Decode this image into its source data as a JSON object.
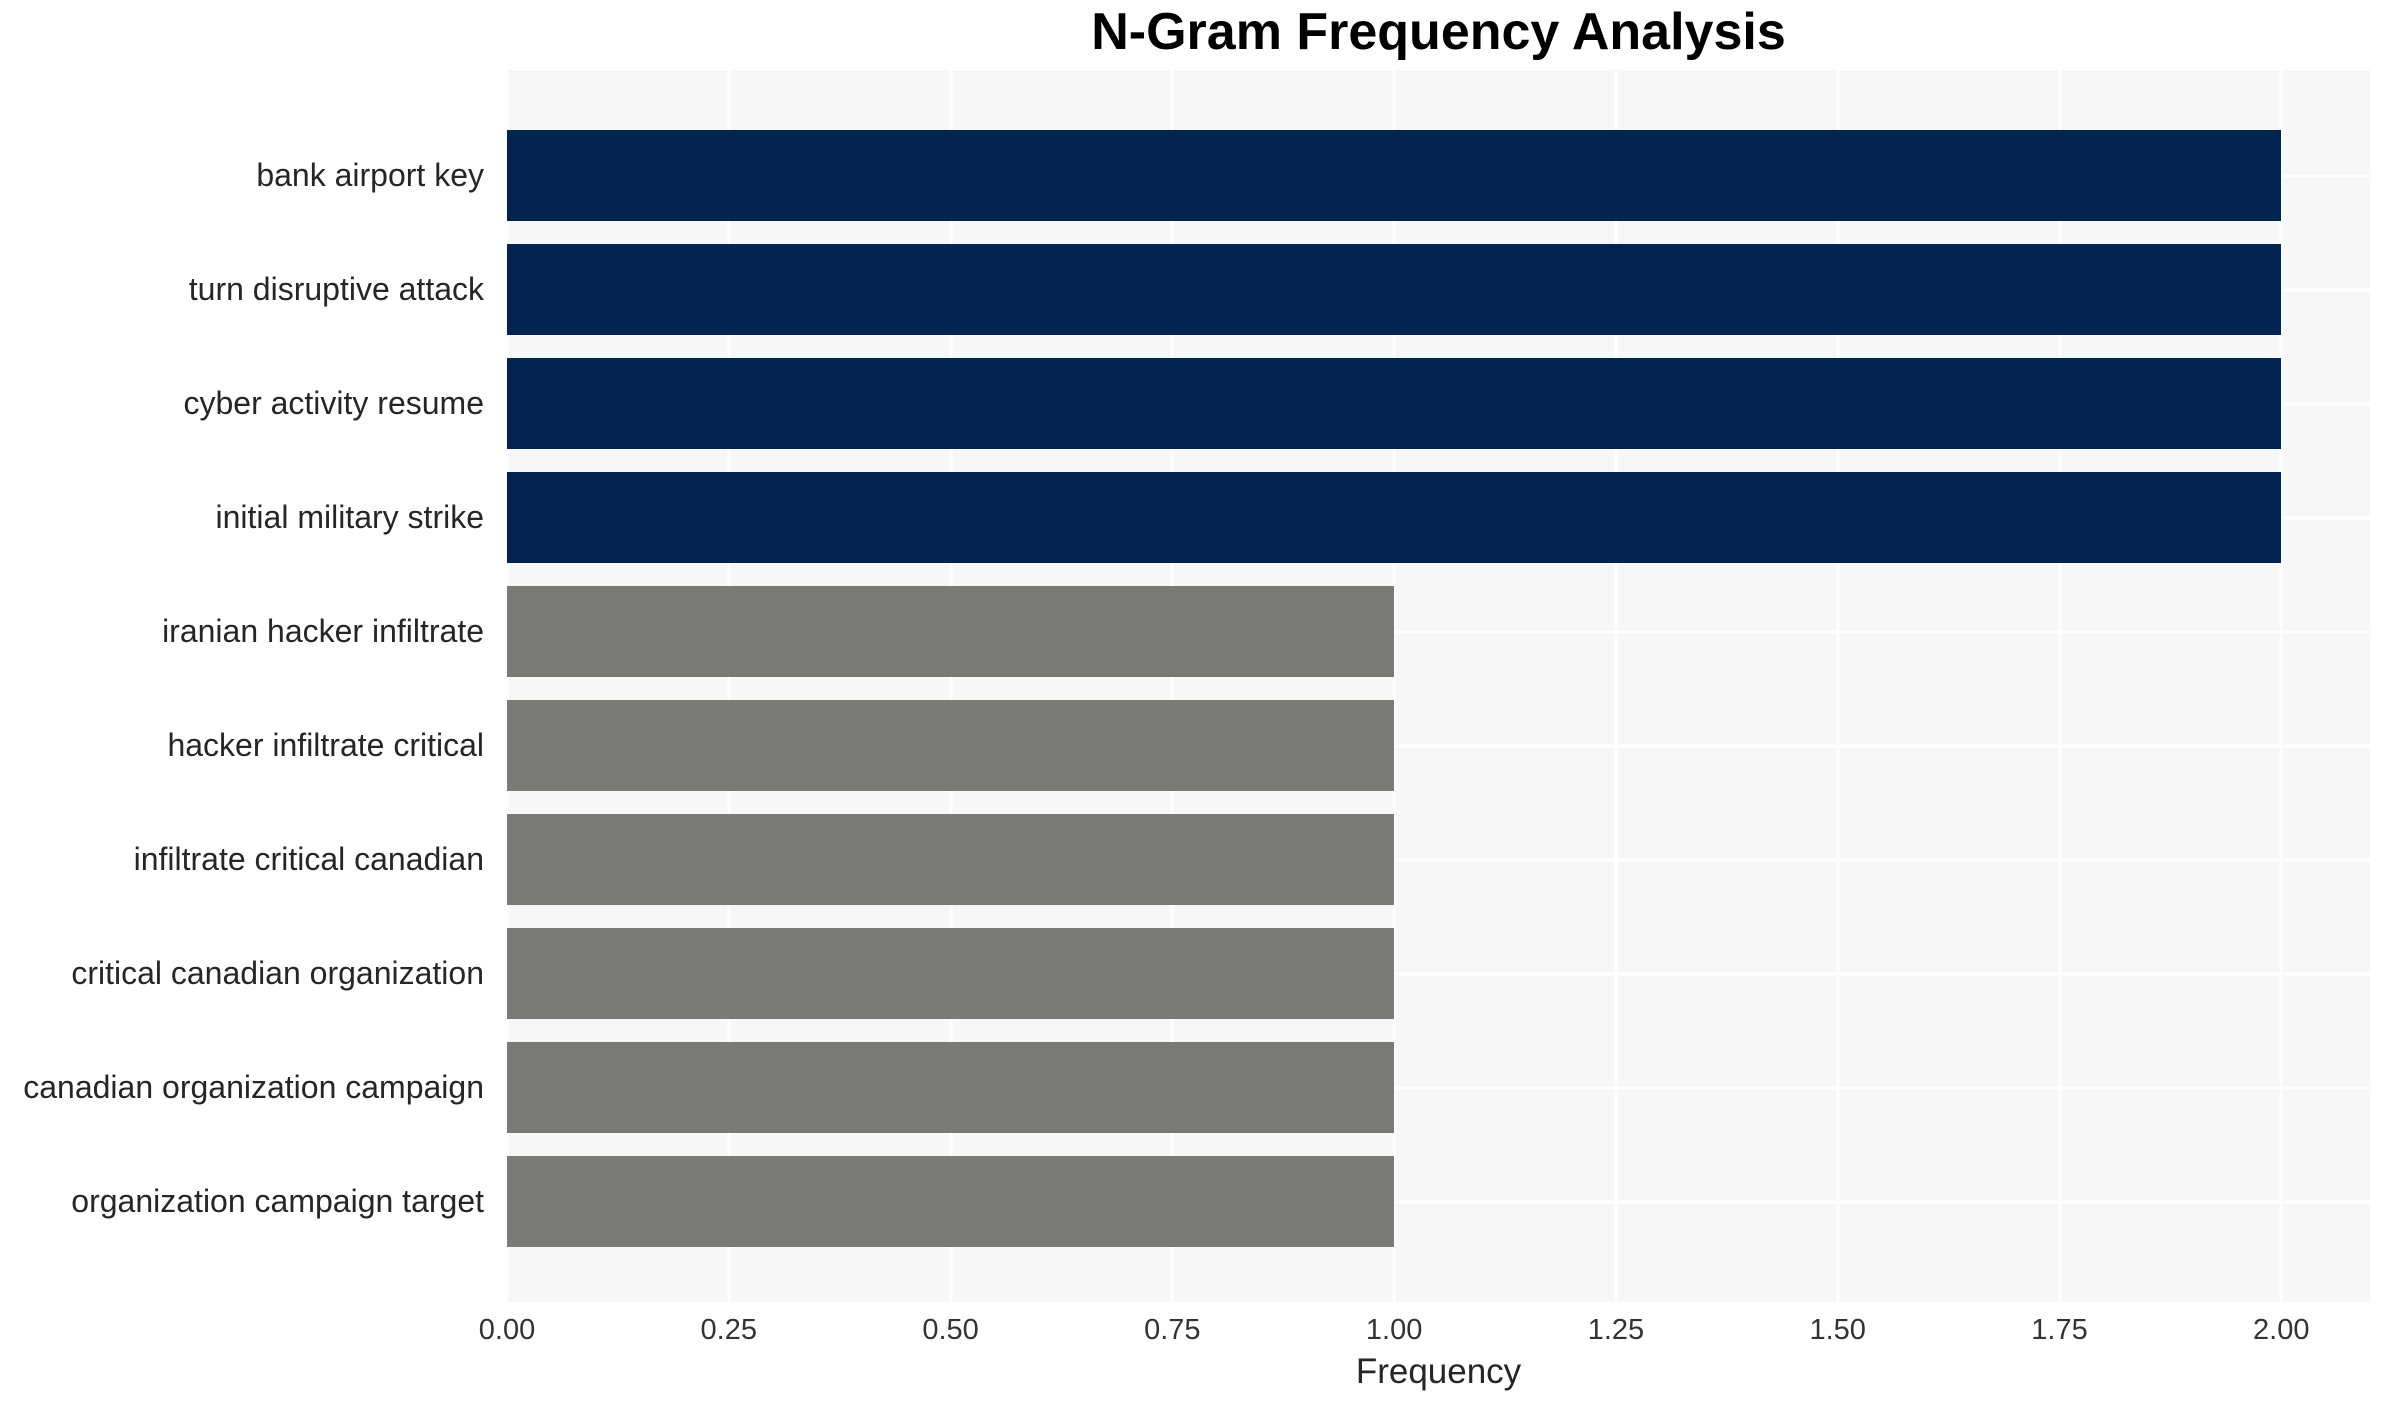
{
  "chart_data": {
    "type": "bar",
    "orientation": "horizontal",
    "title": "N-Gram Frequency Analysis",
    "xlabel": "Frequency",
    "ylabel": "",
    "categories": [
      "bank airport key",
      "turn disruptive attack",
      "cyber activity resume",
      "initial military strike",
      "iranian hacker infiltrate",
      "hacker infiltrate critical",
      "infiltrate critical canadian",
      "critical canadian organization",
      "canadian organization campaign",
      "organization campaign target"
    ],
    "values": [
      2,
      2,
      2,
      2,
      1,
      1,
      1,
      1,
      1,
      1
    ],
    "bar_colors": [
      "#02244e",
      "#02244e",
      "#02244e",
      "#02244e",
      "#7a7a76",
      "#7a7a76",
      "#7a7a76",
      "#7a7a76",
      "#7a7a76",
      "#7a7a76"
    ],
    "xlim": [
      0,
      2.1
    ],
    "xticks": [
      {
        "value": 0.0,
        "label": "0.00"
      },
      {
        "value": 0.25,
        "label": "0.25"
      },
      {
        "value": 0.5,
        "label": "0.50"
      },
      {
        "value": 0.75,
        "label": "0.75"
      },
      {
        "value": 1.0,
        "label": "1.00"
      },
      {
        "value": 1.25,
        "label": "1.25"
      },
      {
        "value": 1.5,
        "label": "1.50"
      },
      {
        "value": 1.75,
        "label": "1.75"
      },
      {
        "value": 2.0,
        "label": "2.00"
      }
    ],
    "grid": true,
    "legend_position": "none",
    "colors": {
      "figure_background": "#ffffff",
      "plot_background": "#f7f7f8",
      "grid_line": "#ffffff",
      "bar_high": "#02244e",
      "bar_low": "#7a7a76",
      "title_text": "#000000",
      "label_text": "#262626",
      "tick_text": "#333333"
    }
  }
}
